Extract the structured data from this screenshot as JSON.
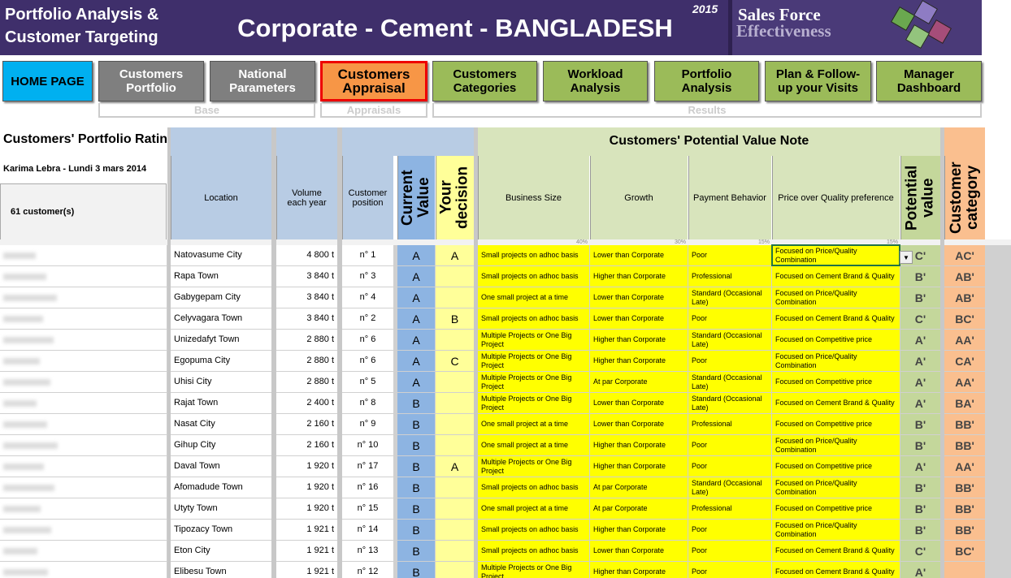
{
  "header": {
    "title_left": "Portfolio Analysis & Customer Targeting",
    "title_main": "Corporate - Cement - BANGLADESH",
    "year": "2015",
    "logo_line1": "Sales Force",
    "logo_line2": "Effectiveness"
  },
  "nav": {
    "buttons": [
      "HOME PAGE",
      "Customers Portfolio",
      "National Parameters",
      "Customers Appraisal",
      "Customers Categories",
      "Workload Analysis",
      "Portfolio Analysis",
      "Plan & Follow-up your Visits",
      "Manager Dashboard"
    ],
    "groups": [
      "Base",
      "Appraisals",
      "Results"
    ]
  },
  "sheet": {
    "title": "Customers' Portfolio Rating",
    "user_date": "Karima Lebra - Lundi 3 mars 2014",
    "customer_count": "61 customer(s)",
    "potential_header": "Customers' Potential Value Note"
  },
  "table": {
    "columns": [
      "Location",
      "Volume each year",
      "Customer position",
      "Current Value",
      "Your decision",
      "Business Size",
      "Growth",
      "Payment Behavior",
      "Price over Quality preference",
      "Potential value",
      "Customer category"
    ],
    "weights": [
      "40%",
      "30%",
      "15%",
      "15%"
    ],
    "rows": [
      [
        "Natovasume City",
        "4 800 t",
        "n° 1",
        "A",
        "A",
        "Small projects on adhoc basis",
        "Lower than Corporate",
        "Poor",
        "Focused on Price/Quality Combination",
        "C'",
        "AC'"
      ],
      [
        "Rapa Town",
        "3 840 t",
        "n° 3",
        "A",
        null,
        "Small projects on adhoc basis",
        "Higher than Corporate",
        "Professional",
        "Focused on Cement Brand & Quality",
        "B'",
        "AB'"
      ],
      [
        "Gabygepam City",
        "3 840 t",
        "n° 4",
        "A",
        null,
        "One small project at a time",
        "Lower than Corporate",
        "Standard (Occasional Late)",
        "Focused on Price/Quality Combination",
        "B'",
        "AB'"
      ],
      [
        "Celyvagara Town",
        "3 840 t",
        "n° 2",
        "A",
        "B",
        "Small projects on adhoc basis",
        "Lower than Corporate",
        "Poor",
        "Focused on Cement Brand & Quality",
        "C'",
        "BC'"
      ],
      [
        "Unizedafyt Town",
        "2 880 t",
        "n° 6",
        "A",
        null,
        "Multiple Projects or One Big Project",
        "Higher than Corporate",
        "Standard (Occasional Late)",
        "Focused on Competitive price",
        "A'",
        "AA'"
      ],
      [
        "Egopuma City",
        "2 880 t",
        "n° 6",
        "A",
        "C",
        "Multiple Projects or One Big Project",
        "Higher than Corporate",
        "Poor",
        "Focused on Price/Quality Combination",
        "A'",
        "CA'"
      ],
      [
        "Uhisi City",
        "2 880 t",
        "n° 5",
        "A",
        null,
        "Multiple Projects or One Big Project",
        "At par Corporate",
        "Standard (Occasional Late)",
        "Focused on Competitive price",
        "A'",
        "AA'"
      ],
      [
        "Rajat Town",
        "2 400 t",
        "n° 8",
        "B",
        null,
        "Multiple Projects or One Big Project",
        "Lower than Corporate",
        "Standard (Occasional Late)",
        "Focused on Cement Brand & Quality",
        "A'",
        "BA'"
      ],
      [
        "Nasat City",
        "2 160 t",
        "n° 9",
        "B",
        null,
        "One small project at a time",
        "Lower than Corporate",
        "Professional",
        "Focused on Competitive price",
        "B'",
        "BB'"
      ],
      [
        "Gihup City",
        "2 160 t",
        "n° 10",
        "B",
        null,
        "One small project at a time",
        "Higher than Corporate",
        "Poor",
        "Focused on Price/Quality Combination",
        "B'",
        "BB'"
      ],
      [
        "Daval Town",
        "1 920 t",
        "n° 17",
        "B",
        "A",
        "Multiple Projects or One Big Project",
        "Higher than Corporate",
        "Poor",
        "Focused on Competitive price",
        "A'",
        "AA'"
      ],
      [
        "Afomadude Town",
        "1 920 t",
        "n° 16",
        "B",
        null,
        "Small projects on adhoc basis",
        "At par Corporate",
        "Standard (Occasional Late)",
        "Focused on Price/Quality Combination",
        "B'",
        "BB'"
      ],
      [
        "Utyty Town",
        "1 920 t",
        "n° 15",
        "B",
        null,
        "One small project at a time",
        "At par Corporate",
        "Professional",
        "Focused on Competitive price",
        "B'",
        "BB'"
      ],
      [
        "Tipozacy Town",
        "1 921 t",
        "n° 14",
        "B",
        null,
        "Small projects on adhoc basis",
        "Higher than Corporate",
        "Poor",
        "Focused on Price/Quality Combination",
        "B'",
        "BB'"
      ],
      [
        "Eton City",
        "1 921 t",
        "n° 13",
        "B",
        null,
        "Small projects on adhoc basis",
        "Lower than Corporate",
        "Poor",
        "Focused on Cement Brand & Quality",
        "C'",
        "BC'"
      ],
      [
        "Elibesu Town",
        "1 921 t",
        "n° 12",
        "B",
        null,
        "Multiple Projects or One Big Project",
        "Higher than Corporate",
        "Poor",
        "Focused on Cement Brand & Quality",
        "A'",
        null
      ]
    ]
  }
}
